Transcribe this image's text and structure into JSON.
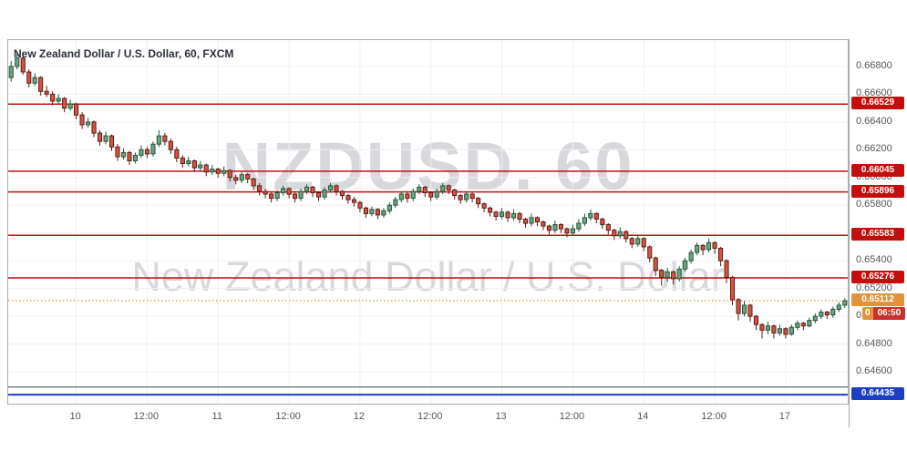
{
  "header": {
    "title": "New Zealand Dollar / U.S. Dollar, 60, FXCM"
  },
  "watermark": {
    "symbol": "NZDUSD. 60",
    "name": "New Zealand Dollar / U.S. Dollar"
  },
  "chart_data": {
    "type": "candlestick",
    "symbol": "NZDUSD",
    "interval": "60",
    "exchange": "FXCM",
    "title": "New Zealand Dollar / U.S. Dollar, 60, FXCM",
    "grid": true,
    "legend_position": "none",
    "price_range": {
      "top": 0.6699,
      "bottom": 0.6437
    },
    "y_ticks": [
      {
        "value": 0.668,
        "label": "0.66800"
      },
      {
        "value": 0.666,
        "label": "0.66600"
      },
      {
        "value": 0.664,
        "label": "0.66400"
      },
      {
        "value": 0.662,
        "label": "0.66200"
      },
      {
        "value": 0.66,
        "label": "0.66000"
      },
      {
        "value": 0.658,
        "label": "0.65800"
      },
      {
        "value": 0.656,
        "label": "0.65600"
      },
      {
        "value": 0.654,
        "label": "0.65400"
      },
      {
        "value": 0.652,
        "label": "0.65200"
      },
      {
        "value": 0.65,
        "label": "0.65000"
      },
      {
        "value": 0.648,
        "label": "0.64800"
      },
      {
        "value": 0.646,
        "label": "0.64600"
      }
    ],
    "x_ticks": [
      {
        "index": 11,
        "label": "10"
      },
      {
        "index": 23,
        "label": "12:00"
      },
      {
        "index": 35,
        "label": "11"
      },
      {
        "index": 47,
        "label": "12:00"
      },
      {
        "index": 59,
        "label": "12"
      },
      {
        "index": 71,
        "label": "12:00"
      },
      {
        "index": 83,
        "label": "13"
      },
      {
        "index": 95,
        "label": "12:00"
      },
      {
        "index": 107,
        "label": "14"
      },
      {
        "index": 119,
        "label": "12:00"
      },
      {
        "index": 131,
        "label": "17"
      }
    ],
    "levels": [
      {
        "price": 0.66529,
        "label": "0.66529",
        "color": "#c40e0e",
        "style": "solid",
        "width": 1.5
      },
      {
        "price": 0.66045,
        "label": "0.66045",
        "color": "#c40e0e",
        "style": "solid",
        "width": 1.5
      },
      {
        "price": 0.65896,
        "label": "0.65896",
        "color": "#c40e0e",
        "style": "solid",
        "width": 1.5
      },
      {
        "price": 0.65583,
        "label": "0.65583",
        "color": "#c40e0e",
        "style": "solid",
        "width": 1.5
      },
      {
        "price": 0.65276,
        "label": "0.65276",
        "color": "#c40e0e",
        "style": "solid",
        "width": 1.5
      },
      {
        "price": 0.65112,
        "label": "0.65112",
        "color": "#e2923a",
        "style": "dotted",
        "width": 1.2,
        "role": "last-price"
      },
      {
        "price": 0.6449,
        "label": "",
        "color": "#37474f",
        "style": "solid",
        "width": 1
      },
      {
        "price": 0.64435,
        "label": "0.64435",
        "color": "#1a3fc4",
        "style": "solid",
        "width": 2
      }
    ],
    "last_price": 0.65112,
    "countdown": {
      "prefix": "0",
      "time": "06:50",
      "prefix_bg": "#e2923a",
      "bg": "#cc2f2f"
    },
    "colors": {
      "up_fill": "#6ba583",
      "up_border": "#225437",
      "down_fill": "#d75442",
      "down_border": "#5b1a13",
      "grid": "#f0f0f0",
      "axis_text": "#555555",
      "border": "#ababab"
    },
    "candles": [
      [
        0.6672,
        0.6684,
        0.6669,
        0.668
      ],
      [
        0.668,
        0.6689,
        0.6678,
        0.6686
      ],
      [
        0.6686,
        0.6688,
        0.6674,
        0.6676
      ],
      [
        0.6676,
        0.6678,
        0.6665,
        0.6668
      ],
      [
        0.6668,
        0.6675,
        0.6666,
        0.6672
      ],
      [
        0.6672,
        0.6673,
        0.6659,
        0.6662
      ],
      [
        0.6662,
        0.6666,
        0.6658,
        0.666
      ],
      [
        0.666,
        0.6662,
        0.6652,
        0.6655
      ],
      [
        0.6655,
        0.666,
        0.6653,
        0.6657
      ],
      [
        0.6657,
        0.6658,
        0.6647,
        0.665
      ],
      [
        0.665,
        0.6656,
        0.6648,
        0.6653
      ],
      [
        0.6653,
        0.6654,
        0.6642,
        0.6645
      ],
      [
        0.6645,
        0.6647,
        0.6635,
        0.6638
      ],
      [
        0.6638,
        0.6643,
        0.6636,
        0.664
      ],
      [
        0.664,
        0.6641,
        0.6629,
        0.6632
      ],
      [
        0.6632,
        0.6634,
        0.6623,
        0.6626
      ],
      [
        0.6626,
        0.6633,
        0.6624,
        0.663
      ],
      [
        0.663,
        0.6631,
        0.6619,
        0.6622
      ],
      [
        0.6622,
        0.6624,
        0.6612,
        0.6615
      ],
      [
        0.6615,
        0.6621,
        0.6613,
        0.6618
      ],
      [
        0.6618,
        0.6619,
        0.6609,
        0.6612
      ],
      [
        0.6612,
        0.6618,
        0.661,
        0.6616
      ],
      [
        0.6616,
        0.6623,
        0.6614,
        0.662
      ],
      [
        0.662,
        0.6622,
        0.6614,
        0.6617
      ],
      [
        0.6617,
        0.6626,
        0.6615,
        0.6624
      ],
      [
        0.6624,
        0.6634,
        0.6622,
        0.663
      ],
      [
        0.663,
        0.6632,
        0.6623,
        0.6626
      ],
      [
        0.6626,
        0.6628,
        0.6617,
        0.662
      ],
      [
        0.662,
        0.6622,
        0.6611,
        0.6614
      ],
      [
        0.6614,
        0.6616,
        0.6607,
        0.661
      ],
      [
        0.661,
        0.6615,
        0.6608,
        0.6612
      ],
      [
        0.6612,
        0.6613,
        0.6604,
        0.6607
      ],
      [
        0.6607,
        0.6612,
        0.6605,
        0.6609
      ],
      [
        0.6609,
        0.661,
        0.6601,
        0.6604
      ],
      [
        0.6604,
        0.6609,
        0.6602,
        0.6606
      ],
      [
        0.6606,
        0.6607,
        0.66,
        0.6603
      ],
      [
        0.6603,
        0.6608,
        0.6601,
        0.6605
      ],
      [
        0.6605,
        0.6606,
        0.6597,
        0.66
      ],
      [
        0.66,
        0.6602,
        0.6595,
        0.6598
      ],
      [
        0.6598,
        0.6604,
        0.6596,
        0.6602
      ],
      [
        0.6602,
        0.6603,
        0.6596,
        0.6599
      ],
      [
        0.6599,
        0.66,
        0.6591,
        0.6594
      ],
      [
        0.6594,
        0.6596,
        0.6587,
        0.659
      ],
      [
        0.659,
        0.6592,
        0.6585,
        0.6588
      ],
      [
        0.6588,
        0.6589,
        0.6582,
        0.6585
      ],
      [
        0.6585,
        0.6591,
        0.6583,
        0.6589
      ],
      [
        0.6589,
        0.6594,
        0.6587,
        0.6592
      ],
      [
        0.6592,
        0.6593,
        0.6585,
        0.6588
      ],
      [
        0.6588,
        0.6589,
        0.6582,
        0.6585
      ],
      [
        0.6585,
        0.6592,
        0.6583,
        0.659
      ],
      [
        0.659,
        0.6595,
        0.6588,
        0.6593
      ],
      [
        0.6593,
        0.6594,
        0.6586,
        0.6589
      ],
      [
        0.6589,
        0.659,
        0.6583,
        0.6586
      ],
      [
        0.6586,
        0.6593,
        0.6584,
        0.6591
      ],
      [
        0.6591,
        0.6596,
        0.6589,
        0.6594
      ],
      [
        0.6594,
        0.6595,
        0.6587,
        0.659
      ],
      [
        0.659,
        0.6591,
        0.6584,
        0.6587
      ],
      [
        0.6587,
        0.6588,
        0.6581,
        0.6584
      ],
      [
        0.6584,
        0.6586,
        0.6579,
        0.6582
      ],
      [
        0.6582,
        0.6583,
        0.6575,
        0.6578
      ],
      [
        0.6578,
        0.6579,
        0.6571,
        0.6574
      ],
      [
        0.6574,
        0.6579,
        0.6572,
        0.6577
      ],
      [
        0.6577,
        0.6578,
        0.657,
        0.6573
      ],
      [
        0.6573,
        0.6578,
        0.6571,
        0.6576
      ],
      [
        0.6576,
        0.6582,
        0.6574,
        0.658
      ],
      [
        0.658,
        0.6586,
        0.6578,
        0.6584
      ],
      [
        0.6584,
        0.659,
        0.6582,
        0.6588
      ],
      [
        0.6588,
        0.6589,
        0.6582,
        0.6585
      ],
      [
        0.6585,
        0.6592,
        0.6583,
        0.659
      ],
      [
        0.659,
        0.6595,
        0.6588,
        0.6593
      ],
      [
        0.6593,
        0.6594,
        0.6586,
        0.6589
      ],
      [
        0.6589,
        0.659,
        0.6583,
        0.6586
      ],
      [
        0.6586,
        0.6592,
        0.6584,
        0.659
      ],
      [
        0.659,
        0.6596,
        0.6588,
        0.6594
      ],
      [
        0.6594,
        0.6595,
        0.6588,
        0.6591
      ],
      [
        0.6591,
        0.6592,
        0.6584,
        0.6587
      ],
      [
        0.6587,
        0.6588,
        0.6581,
        0.6584
      ],
      [
        0.6584,
        0.659,
        0.6582,
        0.6588
      ],
      [
        0.6588,
        0.6589,
        0.6582,
        0.6585
      ],
      [
        0.6585,
        0.6586,
        0.6578,
        0.6581
      ],
      [
        0.6581,
        0.6582,
        0.6575,
        0.6578
      ],
      [
        0.6578,
        0.6579,
        0.6572,
        0.6575
      ],
      [
        0.6575,
        0.6576,
        0.6569,
        0.6572
      ],
      [
        0.6572,
        0.6578,
        0.657,
        0.6575
      ],
      [
        0.6575,
        0.6576,
        0.6568,
        0.6571
      ],
      [
        0.6571,
        0.6577,
        0.6569,
        0.6574
      ],
      [
        0.6574,
        0.6575,
        0.6567,
        0.657
      ],
      [
        0.657,
        0.6571,
        0.6564,
        0.6567
      ],
      [
        0.6567,
        0.6574,
        0.6565,
        0.6571
      ],
      [
        0.6571,
        0.6572,
        0.6565,
        0.6568
      ],
      [
        0.6568,
        0.6569,
        0.6562,
        0.6565
      ],
      [
        0.6565,
        0.6566,
        0.6559,
        0.6562
      ],
      [
        0.6562,
        0.6569,
        0.656,
        0.6566
      ],
      [
        0.6566,
        0.6567,
        0.656,
        0.6563
      ],
      [
        0.6563,
        0.6564,
        0.6557,
        0.656
      ],
      [
        0.656,
        0.6566,
        0.6558,
        0.6563
      ],
      [
        0.6563,
        0.657,
        0.6561,
        0.6567
      ],
      [
        0.6567,
        0.6574,
        0.6565,
        0.6571
      ],
      [
        0.6571,
        0.6577,
        0.6569,
        0.6574
      ],
      [
        0.6574,
        0.6575,
        0.6567,
        0.657
      ],
      [
        0.657,
        0.6571,
        0.6563,
        0.6566
      ],
      [
        0.6566,
        0.6567,
        0.6559,
        0.6562
      ],
      [
        0.6562,
        0.6563,
        0.6555,
        0.6558
      ],
      [
        0.6558,
        0.6564,
        0.6556,
        0.6561
      ],
      [
        0.6561,
        0.6562,
        0.6553,
        0.6556
      ],
      [
        0.6556,
        0.6557,
        0.6549,
        0.6552
      ],
      [
        0.6552,
        0.6558,
        0.655,
        0.6556
      ],
      [
        0.6556,
        0.6557,
        0.6547,
        0.655
      ],
      [
        0.655,
        0.6551,
        0.6539,
        0.6542
      ],
      [
        0.6542,
        0.6543,
        0.6529,
        0.6533
      ],
      [
        0.6533,
        0.6534,
        0.6522,
        0.6528
      ],
      [
        0.6528,
        0.6535,
        0.6525,
        0.6532
      ],
      [
        0.6532,
        0.6533,
        0.6523,
        0.6527
      ],
      [
        0.6527,
        0.6536,
        0.6525,
        0.6534
      ],
      [
        0.6534,
        0.6542,
        0.6532,
        0.654
      ],
      [
        0.654,
        0.6548,
        0.6538,
        0.6546
      ],
      [
        0.6546,
        0.6553,
        0.6544,
        0.6551
      ],
      [
        0.6551,
        0.6552,
        0.6544,
        0.6548
      ],
      [
        0.6548,
        0.6556,
        0.6546,
        0.6553
      ],
      [
        0.6553,
        0.6554,
        0.6545,
        0.6549
      ],
      [
        0.6549,
        0.655,
        0.6536,
        0.654
      ],
      [
        0.654,
        0.6541,
        0.6524,
        0.6528
      ],
      [
        0.6528,
        0.6529,
        0.6508,
        0.6512
      ],
      [
        0.6512,
        0.6513,
        0.6497,
        0.6502
      ],
      [
        0.6502,
        0.6511,
        0.65,
        0.6508
      ],
      [
        0.6508,
        0.6509,
        0.6496,
        0.65
      ],
      [
        0.65,
        0.6501,
        0.649,
        0.6494
      ],
      [
        0.6494,
        0.6495,
        0.6484,
        0.649
      ],
      [
        0.649,
        0.6496,
        0.6487,
        0.6493
      ],
      [
        0.6493,
        0.6494,
        0.6484,
        0.6488
      ],
      [
        0.6488,
        0.6494,
        0.6486,
        0.6491
      ],
      [
        0.6491,
        0.6492,
        0.6484,
        0.6487
      ],
      [
        0.6487,
        0.6494,
        0.6486,
        0.6492
      ],
      [
        0.6492,
        0.6497,
        0.649,
        0.6495
      ],
      [
        0.6495,
        0.6496,
        0.649,
        0.6493
      ],
      [
        0.6493,
        0.6499,
        0.6492,
        0.6497
      ],
      [
        0.6497,
        0.6502,
        0.6495,
        0.65
      ],
      [
        0.65,
        0.6505,
        0.6498,
        0.6503
      ],
      [
        0.6503,
        0.6504,
        0.6498,
        0.6501
      ],
      [
        0.6501,
        0.6507,
        0.6499,
        0.6505
      ],
      [
        0.6505,
        0.651,
        0.6503,
        0.6508
      ],
      [
        0.6508,
        0.6513,
        0.6506,
        0.65112
      ]
    ]
  }
}
